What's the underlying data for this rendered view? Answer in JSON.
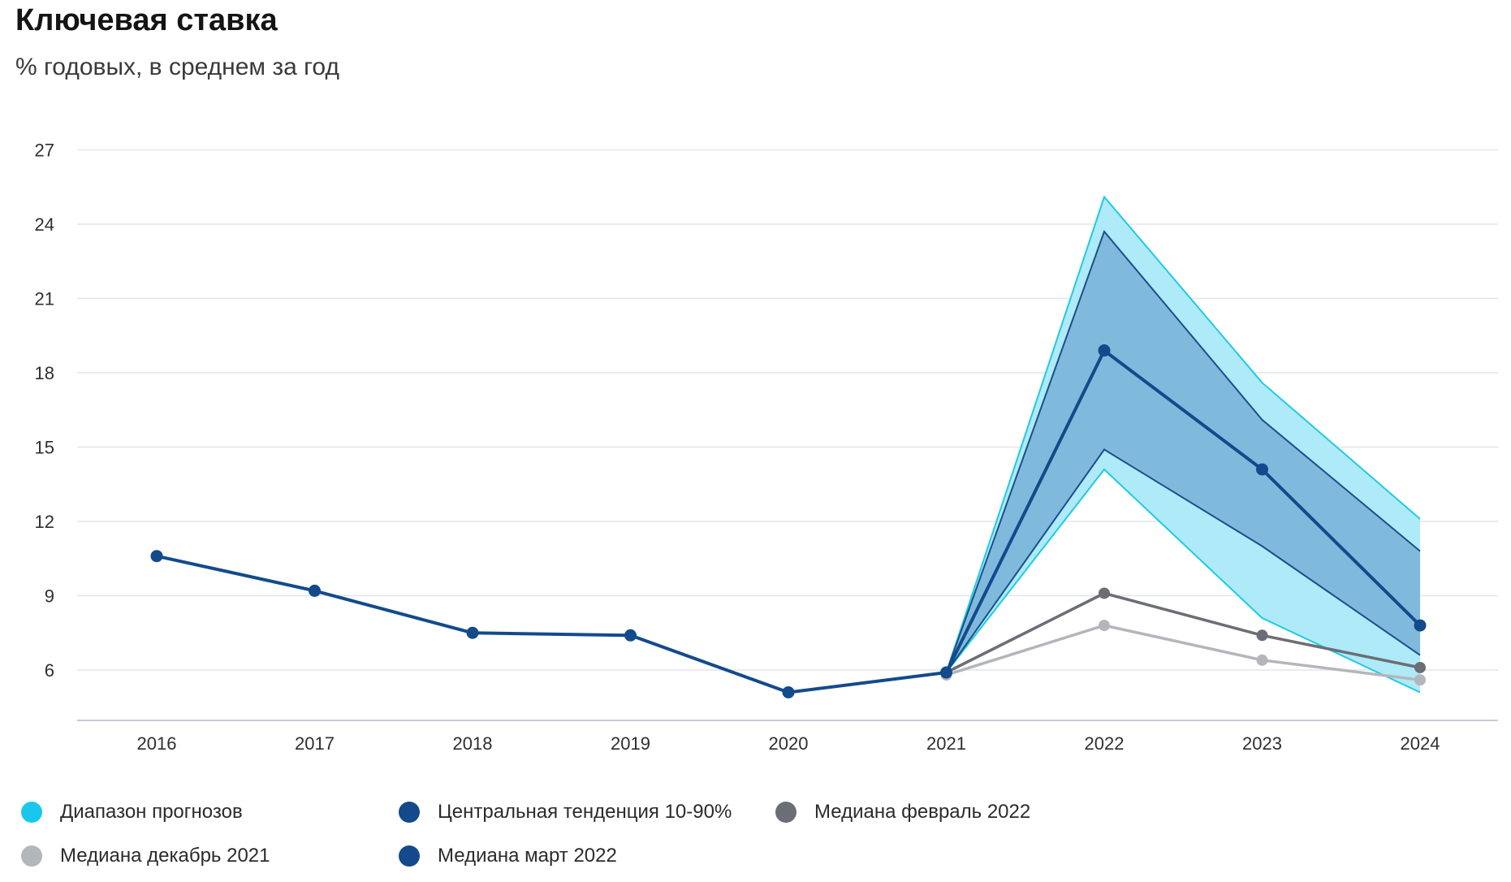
{
  "header": {
    "title": "Ключевая ставка",
    "subtitle": "% годовых, в среднем за год"
  },
  "colors": {
    "range_fill": "#aeeaf7",
    "range_line": "#1fcbe2",
    "central_fill": "#7fbadc",
    "central_line": "#1a4f8c",
    "median_march": "#134a8c",
    "median_february": "#6b6e75",
    "median_december": "#b4b6bc",
    "grid": "#e2e5ea",
    "axis": "#c7ccd8"
  },
  "legend": [
    {
      "label": "Диапазон прогнозов",
      "color": "#18c8ec"
    },
    {
      "label": "Центральная тенденция 10-90%",
      "color": "#134a8c"
    },
    {
      "label": "Медиана февраль 2022",
      "color": "#6b6e75"
    },
    {
      "label": "Медиана декабрь 2021",
      "color": "#b4b6bc"
    },
    {
      "label": "Медиана март 2022",
      "color": "#134a8c"
    }
  ],
  "chart_data": {
    "type": "line",
    "title": "Ключевая ставка",
    "subtitle": "% годовых, в среднем за год",
    "x": [
      "2016",
      "2017",
      "2018",
      "2019",
      "2020",
      "2021",
      "2022",
      "2023",
      "2024"
    ],
    "ylim": [
      4,
      27
    ],
    "yticks": [
      6,
      9,
      12,
      15,
      18,
      21,
      24,
      27
    ],
    "grid": true,
    "legend_position": "bottom-left",
    "series": [
      {
        "name": "Медиана март 2022",
        "values": [
          10.6,
          9.2,
          7.5,
          7.4,
          5.1,
          5.9,
          18.9,
          14.1,
          7.8
        ]
      },
      {
        "name": "Медиана февраль 2022",
        "values": [
          null,
          null,
          null,
          null,
          null,
          5.9,
          9.1,
          7.4,
          6.1
        ]
      },
      {
        "name": "Медиана декабрь 2021",
        "values": [
          null,
          null,
          null,
          null,
          null,
          5.8,
          7.8,
          6.4,
          5.6
        ]
      }
    ],
    "bands": [
      {
        "name": "Диапазон прогнозов",
        "x": [
          "2021",
          "2022",
          "2023",
          "2024"
        ],
        "low": [
          5.9,
          14.1,
          8.1,
          5.1
        ],
        "high": [
          5.9,
          25.1,
          17.6,
          12.1
        ]
      },
      {
        "name": "Центральная тенденция 10-90%",
        "x": [
          "2021",
          "2022",
          "2023",
          "2024"
        ],
        "low": [
          5.9,
          14.9,
          11.0,
          6.6
        ],
        "high": [
          5.9,
          23.7,
          16.1,
          10.8
        ]
      }
    ]
  }
}
